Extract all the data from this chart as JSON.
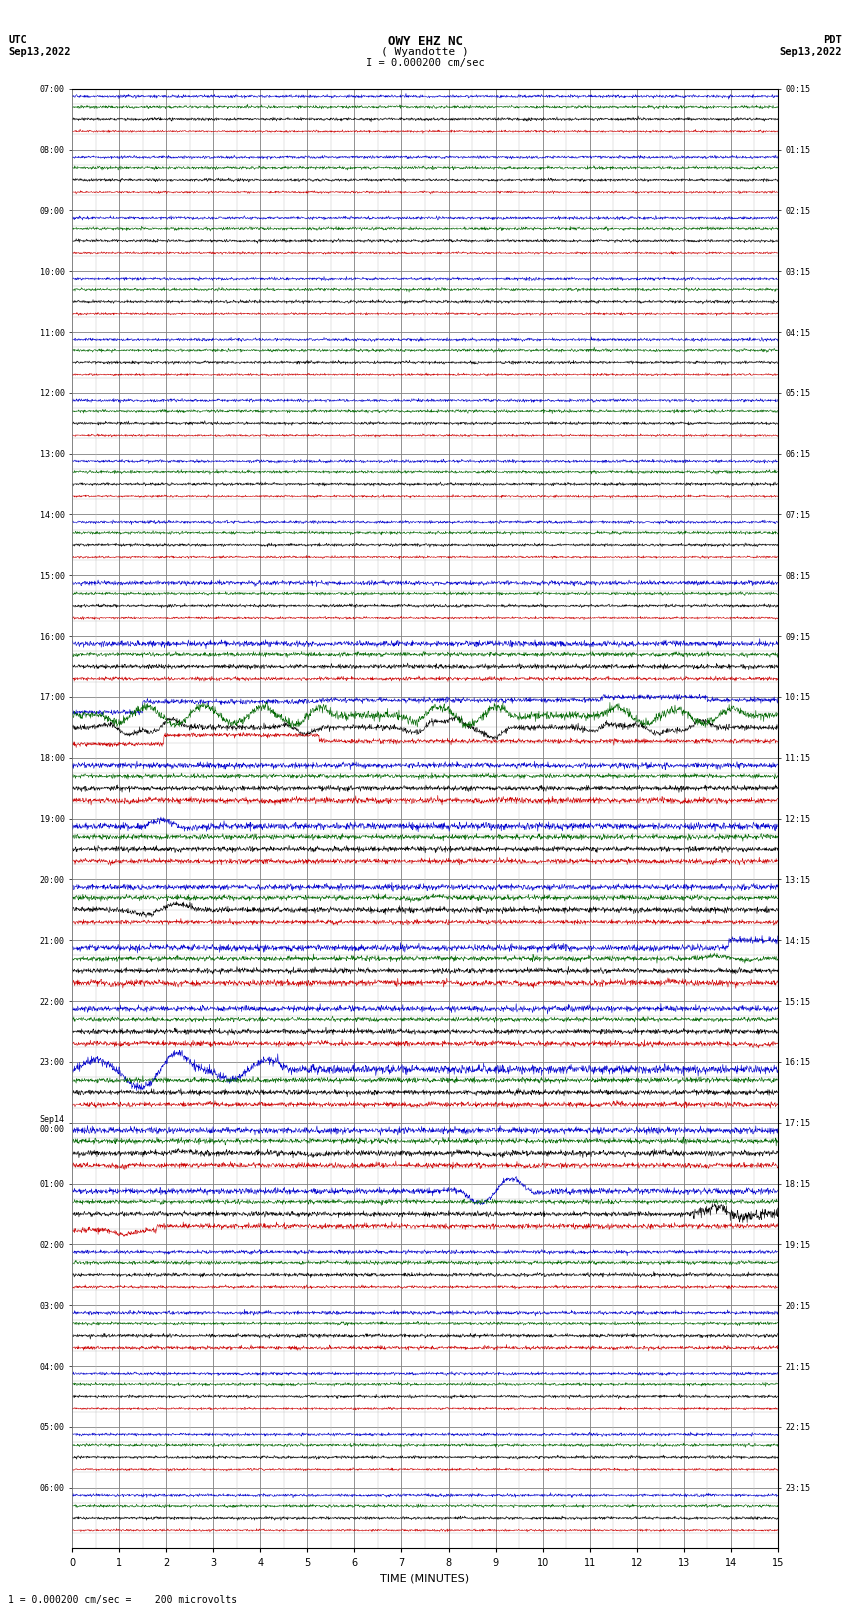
{
  "title_line1": "OWY EHZ NC",
  "title_line2": "( Wyandotte )",
  "scale_label": "I = 0.000200 cm/sec",
  "utc_label": "UTC\nSep13,2022",
  "pdt_label": "PDT\nSep13,2022",
  "bottom_label": "1 = 0.000200 cm/sec =    200 microvolts",
  "xlabel": "TIME (MINUTES)",
  "left_times_utc": [
    "07:00",
    "08:00",
    "09:00",
    "10:00",
    "11:00",
    "12:00",
    "13:00",
    "14:00",
    "15:00",
    "16:00",
    "17:00",
    "18:00",
    "19:00",
    "20:00",
    "21:00",
    "22:00",
    "23:00",
    "Sep14\n00:00",
    "01:00",
    "02:00",
    "03:00",
    "04:00",
    "05:00",
    "06:00"
  ],
  "right_times_pdt": [
    "00:15",
    "01:15",
    "02:15",
    "03:15",
    "04:15",
    "05:15",
    "06:15",
    "07:15",
    "08:15",
    "09:15",
    "10:15",
    "11:15",
    "12:15",
    "13:15",
    "14:15",
    "15:15",
    "16:15",
    "17:15",
    "18:15",
    "19:15",
    "20:15",
    "21:15",
    "22:15",
    "23:15"
  ],
  "n_rows": 24,
  "n_minutes": 15,
  "bg_color": "#ffffff",
  "grid_major_color": "#808080",
  "grid_minor_color": "#c0c0c0",
  "colors": {
    "black": "#000000",
    "blue": "#0000cc",
    "red": "#cc0000",
    "green": "#006600"
  },
  "fig_width": 8.5,
  "fig_height": 16.13,
  "dpi": 100
}
